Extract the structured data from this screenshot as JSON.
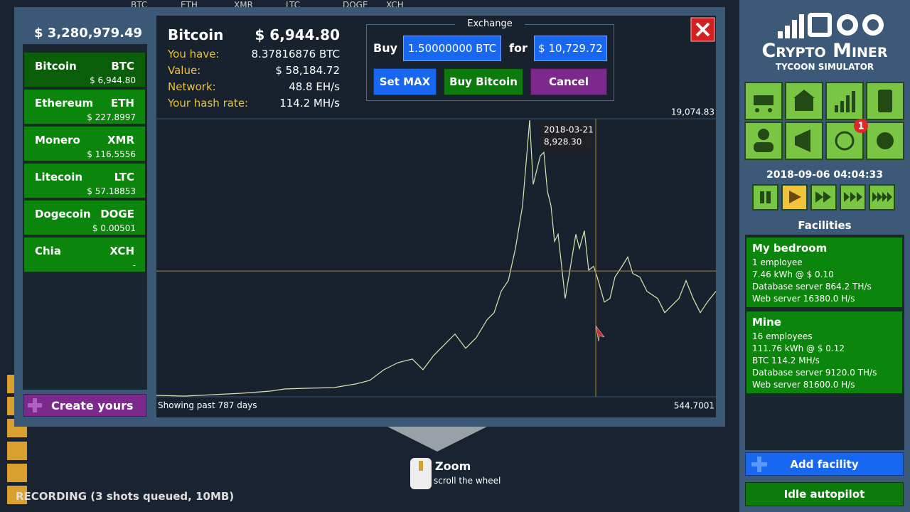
{
  "background": {
    "tickers": [
      "BTC",
      "ETH",
      "XMR",
      "LTC",
      "DOGE",
      "XCH"
    ]
  },
  "dialog": {
    "balance": "$ 3,280,979.49",
    "coins": [
      {
        "name": "Bitcoin",
        "symbol": "BTC",
        "price": "$ 6,944.80"
      },
      {
        "name": "Ethereum",
        "symbol": "ETH",
        "price": "$ 227.8997"
      },
      {
        "name": "Monero",
        "symbol": "XMR",
        "price": "$ 116.5556"
      },
      {
        "name": "Litecoin",
        "symbol": "LTC",
        "price": "$ 57.18853"
      },
      {
        "name": "Dogecoin",
        "symbol": "DOGE",
        "price": "$ 0.00501"
      },
      {
        "name": "Chia",
        "symbol": "XCH",
        "price": "-"
      }
    ],
    "create_button": "Create yours",
    "coin": {
      "name": "Bitcoin",
      "price": "$ 6,944.80",
      "stats": [
        {
          "label": "You have:",
          "value": "8.37816876 BTC"
        },
        {
          "label": "Value:",
          "value": "$ 58,184.72"
        },
        {
          "label": "Network:",
          "value": "48.8 EH/s"
        },
        {
          "label": "Your hash rate:",
          "value": "114.2 MH/s"
        }
      ]
    },
    "exchange": {
      "title": "Exchange",
      "buy_label": "Buy",
      "amount": "1.50000000 BTC",
      "for_label": "for",
      "cost": "$ 10,729.72",
      "buttons": [
        "Set MAX",
        "Buy Bitcoin",
        "Cancel"
      ]
    }
  },
  "chart_data": {
    "type": "line",
    "caption": "Showing past 787 days",
    "color": "#d9e6b0",
    "xlim": [
      0,
      787
    ],
    "ylim": [
      544.7001,
      19074.83
    ],
    "yticks": [
      544.7001,
      {
        "value": 19074.83,
        "label": "19,074.83"
      }
    ],
    "x": [
      0,
      40,
      80,
      120,
      160,
      180,
      210,
      250,
      280,
      300,
      320,
      340,
      360,
      375,
      390,
      405,
      420,
      435,
      450,
      465,
      475,
      485,
      495,
      505,
      515,
      520,
      525,
      530,
      535,
      540,
      545,
      550,
      555,
      560,
      565,
      575,
      580,
      590,
      595,
      602,
      608,
      615,
      620,
      630,
      638,
      645,
      655,
      663,
      670,
      680,
      690,
      705,
      715,
      725,
      735,
      745,
      755,
      765,
      775,
      787
    ],
    "values": [
      640,
      592,
      687,
      782,
      925,
      1067,
      1115,
      1162,
      1400,
      1637,
      2350,
      2825,
      3063,
      2350,
      3300,
      4013,
      4725,
      3775,
      4488,
      5676,
      6151,
      7576,
      8289,
      10427,
      13277,
      16128,
      18978,
      14703,
      15653,
      16603,
      16840,
      14228,
      13277,
      10902,
      11377,
      7101,
      8526,
      11377,
      10427,
      11614,
      8981,
      9239,
      8526,
      6863,
      7101,
      8526,
      9239,
      9857,
      8764,
      8526,
      7576,
      7101,
      6151,
      6626,
      7101,
      8289,
      7101,
      6151,
      6863,
      7576
    ],
    "crosshair": {
      "date": "2018-03-21",
      "x": 618,
      "value": 8928.3,
      "value_label": "8,928.30"
    }
  },
  "sidebar": {
    "logo_title": "Crypto Miner",
    "logo_subtitle": "TYCOON SIMULATOR",
    "notification_badge": "1",
    "datetime": "2018-09-06 04:04:33",
    "facilities_title": "Facilities",
    "facilities": [
      {
        "name": "My bedroom",
        "lines": [
          "1 employee",
          "7.46 kWh @ $ 0.10",
          "Database server 864.2 TH/s",
          "Web server 16380.0 H/s"
        ]
      },
      {
        "name": "Mine",
        "lines": [
          "16 employees",
          "111.76 kWh @ $ 0.12",
          "BTC 114.2 MH/s",
          "Database server 9120.0 TH/s",
          "Web server 81600.0 H/s"
        ]
      }
    ],
    "add_button": "Add facility",
    "autopilot_button": "Idle autopilot"
  },
  "hint": {
    "title": "Zoom",
    "text": "scroll the wheel"
  },
  "status": "RECORDING (3 shots queued, 10MB)"
}
